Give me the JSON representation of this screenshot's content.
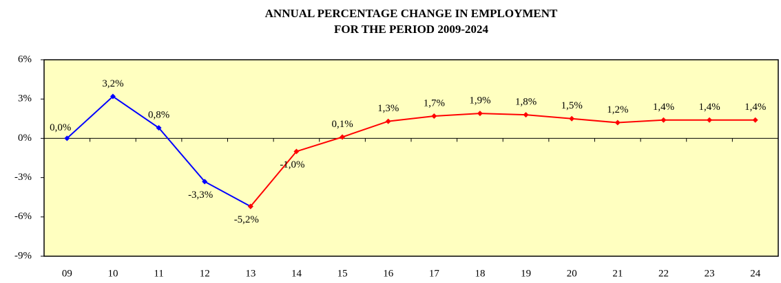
{
  "chart_data": {
    "type": "line",
    "title": "ANNUAL PERCENTAGE CHANGE IN EMPLOYMENT",
    "subtitle": "FOR THE PERIOD 2009-2024",
    "categories": [
      "09",
      "10",
      "11",
      "12",
      "13",
      "14",
      "15",
      "16",
      "17",
      "18",
      "19",
      "20",
      "21",
      "22",
      "23",
      "24"
    ],
    "series": [
      {
        "color": "#0000ff",
        "values": [
          0.0,
          3.2,
          0.8,
          -3.3,
          -5.2,
          null,
          null,
          null,
          null,
          null,
          null,
          null,
          null,
          null,
          null,
          null
        ],
        "value_labels": [
          "0,0%",
          "3,2%",
          "0,8%",
          "-3,3%",
          "-5,2%",
          null,
          null,
          null,
          null,
          null,
          null,
          null,
          null,
          null,
          null,
          null
        ]
      },
      {
        "color": "#ff0000",
        "values": [
          null,
          null,
          null,
          null,
          -5.2,
          -1.0,
          0.1,
          1.3,
          1.7,
          1.9,
          1.8,
          1.5,
          1.2,
          1.4,
          1.4,
          1.4
        ],
        "value_labels": [
          null,
          null,
          null,
          null,
          null,
          "-1,0%",
          "0,1%",
          "1,3%",
          "1,7%",
          "1,9%",
          "1,8%",
          "1,5%",
          "1,2%",
          "1,4%",
          "1,4%",
          "1,4%"
        ]
      }
    ],
    "ylim": [
      -9,
      6
    ],
    "yticks": [
      {
        "value": -9,
        "label": "-9%"
      },
      {
        "value": -6,
        "label": "-6%"
      },
      {
        "value": -3,
        "label": "-3%"
      },
      {
        "value": 0,
        "label": "0%"
      },
      {
        "value": 3,
        "label": "3%"
      },
      {
        "value": 6,
        "label": "6%"
      }
    ],
    "background": "#ffffc0"
  }
}
